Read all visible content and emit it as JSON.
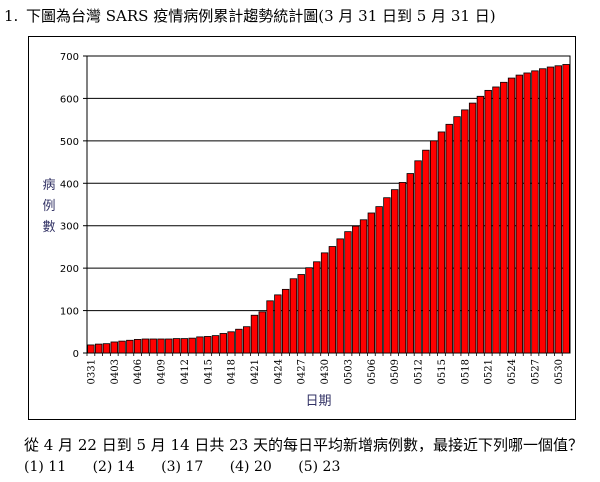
{
  "question": {
    "number": "1.",
    "title": "下圖為台灣 SARS 疫情病例累計趨勢統計圖(3 月 31 日到 5 月 31 日)",
    "prompt": "從 4 月 22 日到 5 月 14 日共 23 天的每日平均新增病例數，最接近下列哪一個值？",
    "options": [
      "(1) 11",
      "(2) 14",
      "(3) 17",
      "(4) 20",
      "(5) 23"
    ]
  },
  "chart_data": {
    "type": "bar",
    "xlabel": "日期",
    "ylabel": "病例數",
    "ylim": [
      0,
      700
    ],
    "yticks": [
      0,
      100,
      200,
      300,
      400,
      500,
      600,
      700
    ],
    "grid": true,
    "categories": [
      "0331",
      "0401",
      "0402",
      "0403",
      "0404",
      "0405",
      "0406",
      "0407",
      "0408",
      "0409",
      "0410",
      "0411",
      "0412",
      "0413",
      "0414",
      "0415",
      "0416",
      "0417",
      "0418",
      "0419",
      "0420",
      "0421",
      "0422",
      "0423",
      "0424",
      "0425",
      "0426",
      "0427",
      "0428",
      "0429",
      "0430",
      "0501",
      "0502",
      "0503",
      "0504",
      "0505",
      "0506",
      "0507",
      "0508",
      "0509",
      "0510",
      "0511",
      "0512",
      "0513",
      "0514",
      "0515",
      "0516",
      "0517",
      "0518",
      "0519",
      "0520",
      "0521",
      "0522",
      "0523",
      "0524",
      "0525",
      "0526",
      "0527",
      "0528",
      "0529",
      "0530",
      "0531"
    ],
    "tick_labels": [
      "0331",
      "0403",
      "0406",
      "0409",
      "0412",
      "0415",
      "0418",
      "0421",
      "0424",
      "0427",
      "0430",
      "0503",
      "0506",
      "0509",
      "0512",
      "0515",
      "0518",
      "0521",
      "0524",
      "0527",
      "0530"
    ],
    "values": [
      19,
      21,
      22,
      26,
      28,
      30,
      32,
      33,
      33,
      33,
      33,
      34,
      34,
      35,
      38,
      39,
      41,
      46,
      50,
      56,
      62,
      89,
      97,
      123,
      137,
      150,
      175,
      185,
      201,
      215,
      236,
      251,
      269,
      286,
      299,
      314,
      330,
      345,
      366,
      385,
      402,
      423,
      453,
      478,
      500,
      521,
      539,
      557,
      573,
      589,
      605,
      619,
      627,
      638,
      648,
      655,
      660,
      665,
      670,
      674,
      677,
      680
    ],
    "bar_color": "#ff0000"
  }
}
